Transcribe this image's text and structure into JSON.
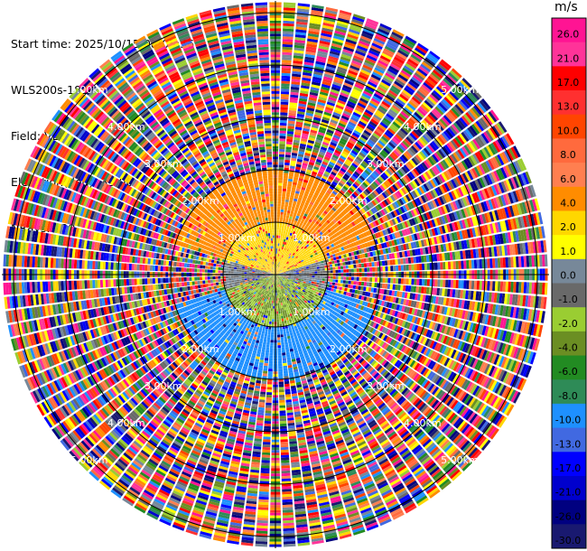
{
  "header": {
    "start_time": "Start time: 2025/10/15 08:05:56",
    "instrument": "WLS200s-181",
    "field": "Field: VEL",
    "elevation": "Elevation(deg): 35.00",
    "nrays": "NRays: 120"
  },
  "chart_data": {
    "type": "polar-ppi",
    "field": "VEL",
    "units": "m/s",
    "nrays": 120,
    "ring_labels": [
      "1.00km",
      "2.00km",
      "3.00km",
      "4.00km",
      "5.00km"
    ],
    "ring_values_km": [
      1,
      2,
      3,
      4,
      5
    ],
    "max_range_km": 5.0,
    "label_angles_deg": [
      45,
      135,
      225,
      315
    ],
    "colorbar": {
      "unit_label": "m/s",
      "ticks": [
        "26.0",
        "21.0",
        "17.0",
        "13.0",
        "10.0",
        "8.0",
        "6.0",
        "4.0",
        "2.0",
        "1.0",
        "0.0",
        "-1.0",
        "-2.0",
        "-4.0",
        "-6.0",
        "-8.0",
        "-10.0",
        "-13.0",
        "-17.0",
        "-21.0",
        "-26.0",
        "-30.0"
      ],
      "colors": [
        "#ff1493",
        "#ff3399",
        "#ff0000",
        "#ff3030",
        "#ff4500",
        "#ff6a3d",
        "#ff7f50",
        "#ff8c00",
        "#ffd700",
        "#ffff00",
        "#778899",
        "#696969",
        "#9acd32",
        "#6b8e23",
        "#228b22",
        "#2e8b57",
        "#1e90ff",
        "#4169e1",
        "#0000ff",
        "#0000cd",
        "#000080",
        "#191970"
      ]
    },
    "field_description_regions": [
      {
        "range_km": [
          0,
          1
        ],
        "sector": "north",
        "velocity_ms": 3.0
      },
      {
        "range_km": [
          0,
          1
        ],
        "sector": "south",
        "velocity_ms": -2.0
      },
      {
        "range_km": [
          0,
          1
        ],
        "sector": "east-west",
        "velocity_ms": 0.0
      },
      {
        "range_km": [
          1,
          2
        ],
        "sector": "north",
        "velocity_ms": 5.0
      },
      {
        "range_km": [
          1,
          2
        ],
        "sector": "south",
        "velocity_ms": -9.0
      },
      {
        "range_km": [
          2,
          5.2
        ],
        "sector": "all",
        "velocity_ms": "noise"
      }
    ]
  }
}
